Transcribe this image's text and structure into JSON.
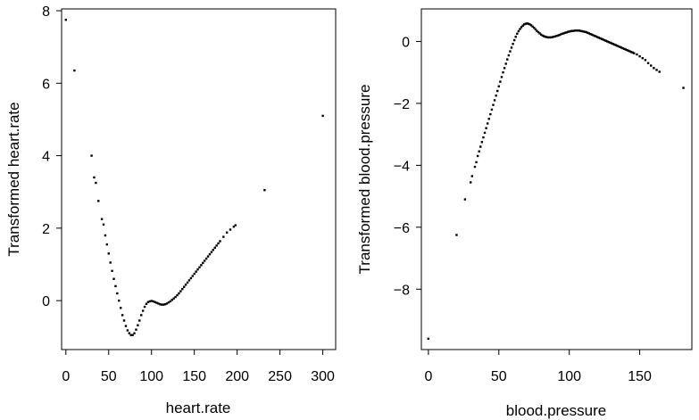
{
  "chart_data": [
    {
      "type": "scatter",
      "xlabel": "heart.rate",
      "ylabel": "Transformed heart.rate",
      "xlim": [
        -5,
        315
      ],
      "ylim": [
        -1.35,
        8.05
      ],
      "xticks": [
        0,
        50,
        100,
        150,
        200,
        250,
        300
      ],
      "xtick_labels": [
        "0",
        "50",
        "100",
        "150",
        "200",
        "250",
        "300"
      ],
      "yticks": [
        0,
        2,
        4,
        6,
        8
      ],
      "ytick_labels": [
        "0",
        "2",
        "4",
        "6",
        "8"
      ],
      "grid": false,
      "marker_color": "#000000",
      "x": [
        0,
        10,
        30,
        33,
        35,
        38,
        42,
        44,
        46,
        48,
        50,
        52,
        54,
        56,
        58,
        60,
        62,
        64,
        66,
        68,
        70,
        72,
        74,
        76,
        78,
        80,
        82,
        84,
        86,
        88,
        90,
        92,
        94,
        96,
        98,
        100,
        102,
        104,
        106,
        108,
        110,
        112,
        114,
        116,
        118,
        120,
        122,
        124,
        126,
        128,
        130,
        132,
        134,
        136,
        138,
        140,
        142,
        144,
        146,
        148,
        150,
        152,
        154,
        156,
        158,
        160,
        162,
        164,
        166,
        168,
        170,
        172,
        174,
        176,
        178,
        180,
        184,
        188,
        192,
        196,
        198,
        232,
        300
      ],
      "y": [
        7.75,
        6.35,
        4.0,
        3.4,
        3.25,
        2.75,
        2.25,
        2.1,
        1.8,
        1.55,
        1.3,
        1.05,
        0.82,
        0.6,
        0.4,
        0.2,
        0.0,
        -0.2,
        -0.4,
        -0.55,
        -0.7,
        -0.82,
        -0.9,
        -0.95,
        -0.95,
        -0.9,
        -0.8,
        -0.68,
        -0.55,
        -0.4,
        -0.28,
        -0.17,
        -0.09,
        -0.04,
        -0.02,
        -0.01,
        -0.02,
        -0.04,
        -0.06,
        -0.08,
        -0.1,
        -0.11,
        -0.11,
        -0.1,
        -0.08,
        -0.05,
        -0.02,
        0.02,
        0.06,
        0.1,
        0.15,
        0.2,
        0.26,
        0.32,
        0.38,
        0.44,
        0.5,
        0.56,
        0.62,
        0.68,
        0.74,
        0.8,
        0.86,
        0.92,
        0.98,
        1.04,
        1.1,
        1.16,
        1.22,
        1.28,
        1.34,
        1.4,
        1.46,
        1.52,
        1.58,
        1.64,
        1.76,
        1.88,
        1.96,
        2.04,
        2.08,
        3.05,
        5.1
      ]
    },
    {
      "type": "scatter",
      "xlabel": "blood.pressure",
      "ylabel": "Transformed blood.pressure",
      "xlim": [
        -5,
        187
      ],
      "ylim": [
        -9.95,
        1.05
      ],
      "xticks": [
        0,
        50,
        100,
        150
      ],
      "xtick_labels": [
        "0",
        "50",
        "100",
        "150"
      ],
      "yticks": [
        -8,
        -6,
        -4,
        -2,
        0
      ],
      "ytick_labels": [
        "−8",
        "−6",
        "−4",
        "−2",
        "0"
      ],
      "grid": false,
      "marker_color": "#000000",
      "x": [
        0,
        20,
        26,
        30,
        31,
        33,
        34,
        35,
        36,
        37,
        38,
        39,
        40,
        41,
        42,
        43,
        44,
        45,
        46,
        47,
        48,
        49,
        50,
        51,
        52,
        53,
        54,
        55,
        56,
        57,
        58,
        59,
        60,
        61,
        62,
        63,
        64,
        65,
        66,
        67,
        68,
        69,
        70,
        71,
        72,
        73,
        74,
        75,
        76,
        77,
        78,
        79,
        80,
        81,
        82,
        83,
        84,
        85,
        86,
        87,
        88,
        89,
        90,
        91,
        92,
        93,
        94,
        95,
        96,
        97,
        98,
        99,
        100,
        101,
        102,
        103,
        104,
        105,
        106,
        107,
        108,
        109,
        110,
        111,
        112,
        113,
        114,
        115,
        116,
        117,
        118,
        119,
        120,
        121,
        122,
        123,
        124,
        125,
        126,
        127,
        128,
        129,
        130,
        131,
        132,
        133,
        134,
        135,
        136,
        137,
        138,
        139,
        140,
        141,
        142,
        143,
        144,
        145,
        146,
        148,
        150,
        152,
        154,
        156,
        158,
        160,
        162,
        164,
        181
      ],
      "y": [
        -9.6,
        -6.25,
        -5.1,
        -4.55,
        -4.35,
        -4.05,
        -3.9,
        -3.7,
        -3.55,
        -3.4,
        -3.25,
        -3.1,
        -2.95,
        -2.8,
        -2.65,
        -2.5,
        -2.35,
        -2.2,
        -2.05,
        -1.9,
        -1.75,
        -1.6,
        -1.45,
        -1.3,
        -1.15,
        -1.0,
        -0.86,
        -0.72,
        -0.58,
        -0.45,
        -0.32,
        -0.2,
        -0.08,
        0.04,
        0.15,
        0.25,
        0.33,
        0.4,
        0.46,
        0.51,
        0.55,
        0.57,
        0.58,
        0.57,
        0.55,
        0.52,
        0.48,
        0.44,
        0.39,
        0.34,
        0.3,
        0.26,
        0.22,
        0.19,
        0.17,
        0.15,
        0.14,
        0.13,
        0.13,
        0.13,
        0.14,
        0.15,
        0.16,
        0.18,
        0.19,
        0.21,
        0.23,
        0.25,
        0.26,
        0.28,
        0.29,
        0.31,
        0.32,
        0.33,
        0.34,
        0.34,
        0.35,
        0.35,
        0.35,
        0.35,
        0.34,
        0.33,
        0.32,
        0.31,
        0.3,
        0.28,
        0.26,
        0.24,
        0.22,
        0.2,
        0.18,
        0.16,
        0.14,
        0.12,
        0.1,
        0.08,
        0.06,
        0.04,
        0.02,
        0.0,
        -0.02,
        -0.04,
        -0.06,
        -0.08,
        -0.1,
        -0.12,
        -0.14,
        -0.16,
        -0.18,
        -0.2,
        -0.22,
        -0.24,
        -0.26,
        -0.28,
        -0.3,
        -0.32,
        -0.34,
        -0.36,
        -0.38,
        -0.42,
        -0.48,
        -0.54,
        -0.6,
        -0.7,
        -0.78,
        -0.86,
        -0.92,
        -0.98,
        -1.5
      ]
    }
  ]
}
